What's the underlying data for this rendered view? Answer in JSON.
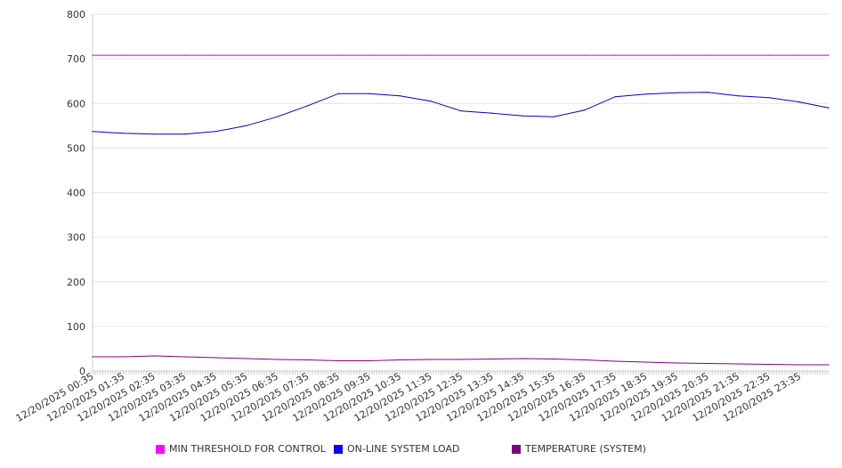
{
  "chart_data": {
    "type": "line",
    "title": "",
    "xlabel": "",
    "ylabel": "",
    "ylim": [
      0,
      800
    ],
    "yticks": [
      "0",
      "100",
      "200",
      "300",
      "400",
      "500",
      "600",
      "700",
      "800"
    ],
    "grid": true,
    "legend_position": "bottom",
    "x_hours_from_start": [
      0,
      1,
      2,
      3,
      4,
      5,
      6,
      7,
      8,
      9,
      10,
      11,
      12,
      13,
      14,
      15,
      16,
      17,
      18,
      19,
      20,
      21,
      22,
      23,
      23.94
    ],
    "xrange_hours": [
      0,
      23.94
    ],
    "xtick_labels": [
      "12/20/2025 00:35",
      "12/20/2025 01:35",
      "12/20/2025 02:35",
      "12/20/2025 03:35",
      "12/20/2025 04:35",
      "12/20/2025 05:35",
      "12/20/2025 06:35",
      "12/20/2025 07:35",
      "12/20/2025 08:35",
      "12/20/2025 09:35",
      "12/20/2025 10:35",
      "12/20/2025 11:35",
      "12/20/2025 12:35",
      "12/20/2025 13:35",
      "12/20/2025 14:35",
      "12/20/2025 15:35",
      "12/20/2025 16:35",
      "12/20/2025 17:35",
      "12/20/2025 18:35",
      "12/20/2025 19:35",
      "12/20/2025 20:35",
      "12/20/2025 21:35",
      "12/20/2025 22:35",
      "12/20/2025 23:35"
    ],
    "series": [
      {
        "name": "MIN THRESHOLD FOR CONTROL",
        "color": "#ff00ff",
        "line_color": "#cc00cc",
        "values": [
          708,
          708,
          708,
          708,
          708,
          708,
          708,
          708,
          708,
          708,
          708,
          708,
          708,
          708,
          708,
          708,
          708,
          708,
          708,
          708,
          708,
          708,
          708,
          708,
          708
        ]
      },
      {
        "name": "ON-LINE SYSTEM LOAD",
        "color": "#0000ff",
        "line_color": "#0000cc",
        "values": [
          537,
          533,
          531,
          531,
          537,
          550,
          570,
          595,
          622,
          622,
          617,
          605,
          583,
          578,
          572,
          570,
          585,
          615,
          621,
          624,
          625,
          617,
          613,
          603,
          590
        ]
      },
      {
        "name": "TEMPERATURE (SYSTEM)",
        "color": "#800080",
        "line_color": "#800080",
        "values": [
          32,
          32,
          34,
          32,
          30,
          28,
          26,
          25,
          23,
          23,
          25,
          26,
          26,
          27,
          28,
          27,
          25,
          22,
          20,
          18,
          17,
          16,
          15,
          14,
          14
        ]
      }
    ]
  }
}
